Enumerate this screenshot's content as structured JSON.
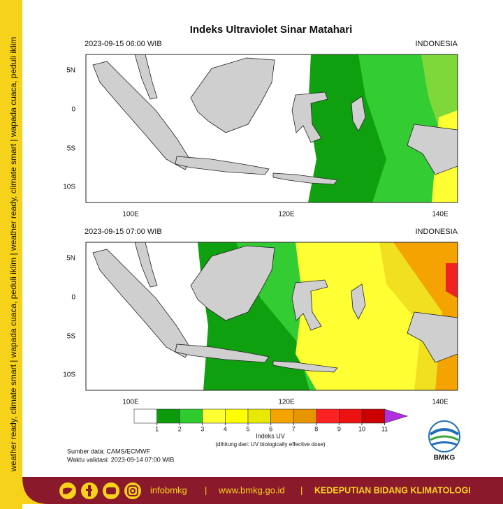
{
  "sidebar_text": "weather ready, climate smart | wapada cuaca, peduli iklim | weather ready, climate smart | wapada cuaca, peduli iklim",
  "title": "Indeks Ultraviolet Sinar Matahari",
  "panels": [
    {
      "time": "2023-09-15  06:00 WIB",
      "region": "INDONESIA"
    },
    {
      "time": "2023-09-15  07:00 WIB",
      "region": "INDONESIA"
    }
  ],
  "lat_labels": [
    "5N",
    "0",
    "5S",
    "10S"
  ],
  "lon_labels": [
    "100E",
    "120E",
    "140E"
  ],
  "colorbar": {
    "colors": [
      "#ffffff",
      "#0b9b0b",
      "#2ecc2e",
      "#ffff33",
      "#ffff00",
      "#e8e800",
      "#f5a300",
      "#e69500",
      "#ff2222",
      "#ee1111",
      "#cc0000",
      "#b22ee0"
    ],
    "ticks": [
      1,
      2,
      3,
      4,
      5,
      6,
      7,
      8,
      9,
      10,
      11
    ],
    "title": "Indeks UV",
    "note": "(dihitung dari: UV biologically effective dose)"
  },
  "source": "Sumber data: CAMS/ECMWF",
  "valid": "Waktu validasi: 2023-09-14 07:00 WIB",
  "logo": "BMKG",
  "footer": {
    "handle": "infobmkg",
    "separators": [
      "|",
      "|"
    ],
    "website": "www.bmkg.go.id",
    "department": "KEDEPUTIAN BIDANG KLIMATOLOGI"
  }
}
